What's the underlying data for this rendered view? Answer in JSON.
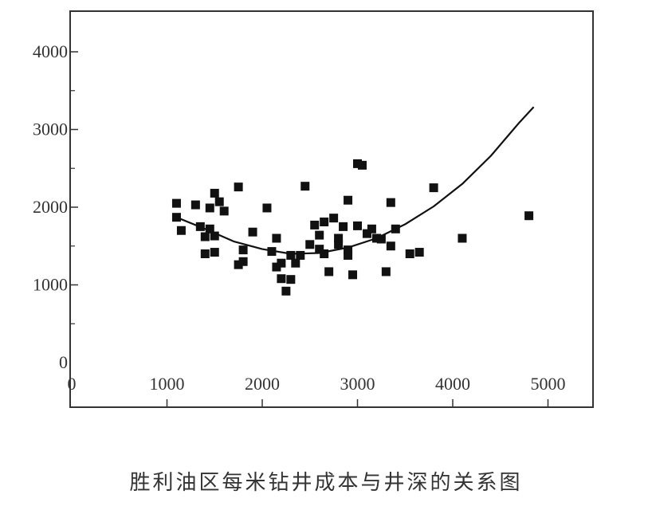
{
  "chart_data": {
    "type": "scatter",
    "caption": "胜利油区每米钻井成本与井深的关系图",
    "xlim": [
      0,
      5500
    ],
    "ylim": [
      0,
      4500
    ],
    "x_ticks": [
      0,
      1000,
      2000,
      3000,
      4000,
      5000
    ],
    "y_ticks": [
      0,
      1000,
      2000,
      3000,
      4000
    ],
    "grid": false,
    "legend": "none",
    "point_color": "#111111",
    "series": [
      {
        "marker": "square",
        "points": [
          [
            1100,
            2050
          ],
          [
            1100,
            1870
          ],
          [
            1150,
            1700
          ],
          [
            1300,
            2030
          ],
          [
            1350,
            1750
          ],
          [
            1400,
            1620
          ],
          [
            1400,
            1400
          ],
          [
            1450,
            1990
          ],
          [
            1450,
            1720
          ],
          [
            1500,
            2180
          ],
          [
            1500,
            1420
          ],
          [
            1500,
            1630
          ],
          [
            1550,
            2070
          ],
          [
            1600,
            1950
          ],
          [
            1750,
            2260
          ],
          [
            1750,
            1260
          ],
          [
            1800,
            1300
          ],
          [
            1800,
            1450
          ],
          [
            1900,
            1680
          ],
          [
            2050,
            1990
          ],
          [
            2100,
            1430
          ],
          [
            2150,
            1600
          ],
          [
            2150,
            1230
          ],
          [
            2200,
            1280
          ],
          [
            2200,
            1080
          ],
          [
            2250,
            920
          ],
          [
            2300,
            1380
          ],
          [
            2300,
            1070
          ],
          [
            2350,
            1280
          ],
          [
            2400,
            1380
          ],
          [
            2450,
            2270
          ],
          [
            2500,
            1520
          ],
          [
            2550,
            1770
          ],
          [
            2600,
            1640
          ],
          [
            2600,
            1460
          ],
          [
            2650,
            1810
          ],
          [
            2650,
            1400
          ],
          [
            2700,
            1170
          ],
          [
            2750,
            1860
          ],
          [
            2800,
            1600
          ],
          [
            2800,
            1520
          ],
          [
            2850,
            1750
          ],
          [
            2900,
            2090
          ],
          [
            2900,
            1450
          ],
          [
            2900,
            1380
          ],
          [
            2950,
            1130
          ],
          [
            3000,
            2560
          ],
          [
            3000,
            1760
          ],
          [
            3050,
            2540
          ],
          [
            3100,
            1660
          ],
          [
            3150,
            1720
          ],
          [
            3200,
            1600
          ],
          [
            3250,
            1590
          ],
          [
            3300,
            1170
          ],
          [
            3350,
            2060
          ],
          [
            3350,
            1500
          ],
          [
            3400,
            1720
          ],
          [
            3550,
            1400
          ],
          [
            3650,
            1420
          ],
          [
            3800,
            2250
          ],
          [
            4100,
            1600
          ],
          [
            4800,
            1890
          ]
        ]
      },
      {
        "marker": "line",
        "curve": [
          [
            1100,
            1870
          ],
          [
            1400,
            1720
          ],
          [
            1700,
            1560
          ],
          [
            2000,
            1460
          ],
          [
            2300,
            1400
          ],
          [
            2600,
            1410
          ],
          [
            2900,
            1480
          ],
          [
            3200,
            1600
          ],
          [
            3500,
            1780
          ],
          [
            3800,
            2010
          ],
          [
            4100,
            2300
          ],
          [
            4400,
            2660
          ],
          [
            4700,
            3090
          ],
          [
            4850,
            3290
          ]
        ]
      }
    ]
  }
}
